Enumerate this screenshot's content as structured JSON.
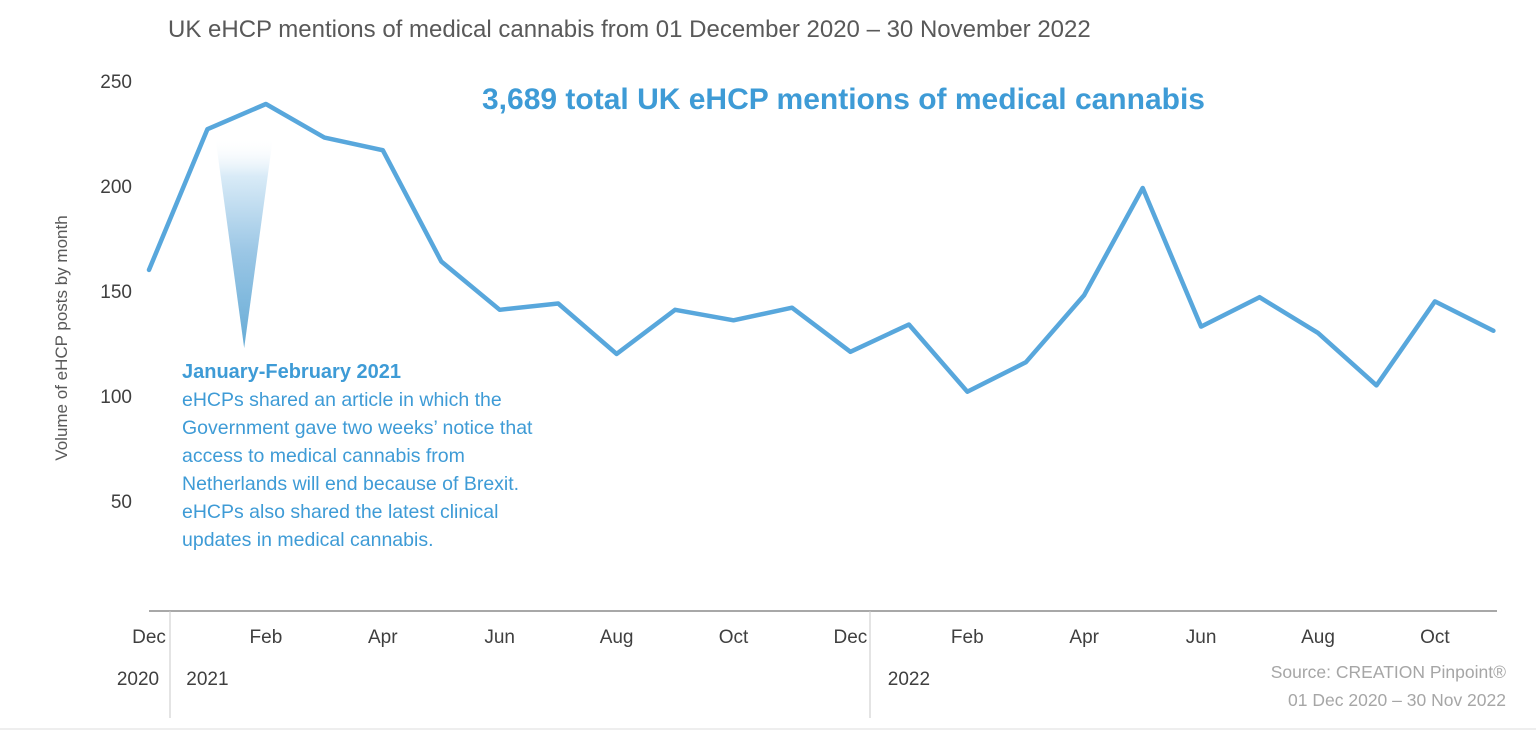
{
  "page": {
    "title": "UK eHCP mentions of medical cannabis from 01 December 2020 – 30 November 2022",
    "headline": "3,689 total UK eHCP mentions of medical cannabis",
    "source_line1": "Source: CREATION Pinpoint®",
    "source_line2": "01 Dec 2020 – 30 Nov 2022"
  },
  "annotation": {
    "title": "January-February 2021",
    "body": "eHCPs shared an article in which the Government gave two weeks’ notice that access to medical cannabis from Netherlands will end because of Brexit. eHCPs also shared the latest clinical updates in medical cannabis."
  },
  "colors": {
    "line": "#58a7dc",
    "accent_text": "#3e9bd6",
    "title_gray": "#595959",
    "label_gray": "#3f3f3f",
    "axis_gray": "#a8a8a8",
    "separator_gray": "#c9c9c9",
    "source_gray": "#a6a6a6"
  },
  "chart_data": {
    "type": "line",
    "title": "UK eHCP mentions of medical cannabis from 01 December 2020 – 30 November 2022",
    "xlabel": "",
    "ylabel": "Volume of eHCP posts by month",
    "ylim": [
      0,
      250
    ],
    "y_ticks": [
      250,
      200,
      150,
      100,
      50
    ],
    "grid": false,
    "legend": false,
    "total_mentions": 3689,
    "x": [
      "Dec 2020",
      "Jan 2021",
      "Feb 2021",
      "Mar 2021",
      "Apr 2021",
      "May 2021",
      "Jun 2021",
      "Jul 2021",
      "Aug 2021",
      "Sep 2021",
      "Oct 2021",
      "Nov 2021",
      "Dec 2021",
      "Jan 2022",
      "Feb 2022",
      "Mar 2022",
      "Apr 2022",
      "May 2022",
      "Jun 2022",
      "Jul 2022",
      "Aug 2022",
      "Sep 2022",
      "Oct 2022",
      "Nov 2022"
    ],
    "values": [
      161,
      228,
      240,
      224,
      218,
      165,
      142,
      145,
      121,
      142,
      137,
      143,
      122,
      135,
      103,
      117,
      149,
      200,
      134,
      148,
      131,
      106,
      146,
      132
    ],
    "x_tick_labels": [
      {
        "label": "Dec",
        "index": 0
      },
      {
        "label": "Feb",
        "index": 2
      },
      {
        "label": "Apr",
        "index": 4
      },
      {
        "label": "Jun",
        "index": 6
      },
      {
        "label": "Aug",
        "index": 8
      },
      {
        "label": "Oct",
        "index": 10
      },
      {
        "label": "Dec",
        "index": 12
      },
      {
        "label": "Feb",
        "index": 14
      },
      {
        "label": "Apr",
        "index": 16
      },
      {
        "label": "Jun",
        "index": 18
      },
      {
        "label": "Aug",
        "index": 20
      },
      {
        "label": "Oct",
        "index": 22
      }
    ],
    "year_labels": [
      {
        "label": "2020",
        "index": 0
      },
      {
        "label": "2021",
        "index": 1
      },
      {
        "label": "2022",
        "index": 13
      }
    ],
    "callout_pointer_months": [
      "Jan 2021",
      "Feb 2021"
    ]
  }
}
